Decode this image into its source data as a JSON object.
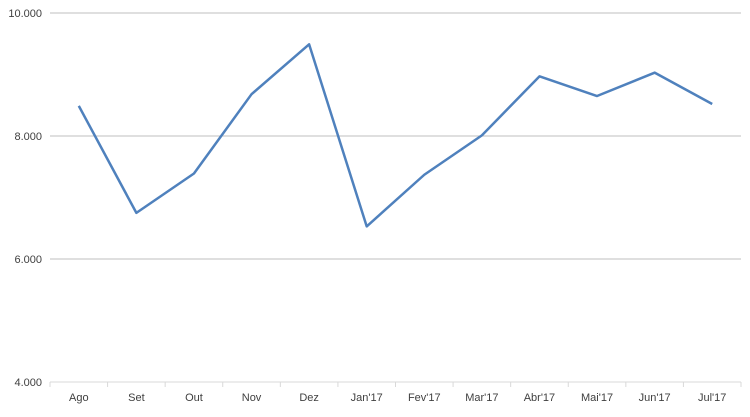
{
  "chart_data": {
    "type": "line",
    "title": "",
    "xlabel": "",
    "ylabel": "",
    "categories": [
      "Ago",
      "Set",
      "Out",
      "Nov",
      "Dez",
      "Jan'17",
      "Fev'17",
      "Mar'17",
      "Abr'17",
      "Mai'17",
      "Jun'17",
      "Jul'17"
    ],
    "series": [
      {
        "values": [
          8490,
          6750,
          7390,
          8680,
          9490,
          6530,
          7370,
          8010,
          8970,
          8650,
          9030,
          8520
        ],
        "color": "#4f81bd"
      }
    ],
    "ylim": [
      4000,
      10000
    ],
    "yticks": [
      4000,
      6000,
      8000,
      10000
    ],
    "ytick_labels": [
      "4.000",
      "6.000",
      "8.000",
      "10.000"
    ],
    "grid": true,
    "legend": "none",
    "gridline_color": "#bfbfbf"
  }
}
